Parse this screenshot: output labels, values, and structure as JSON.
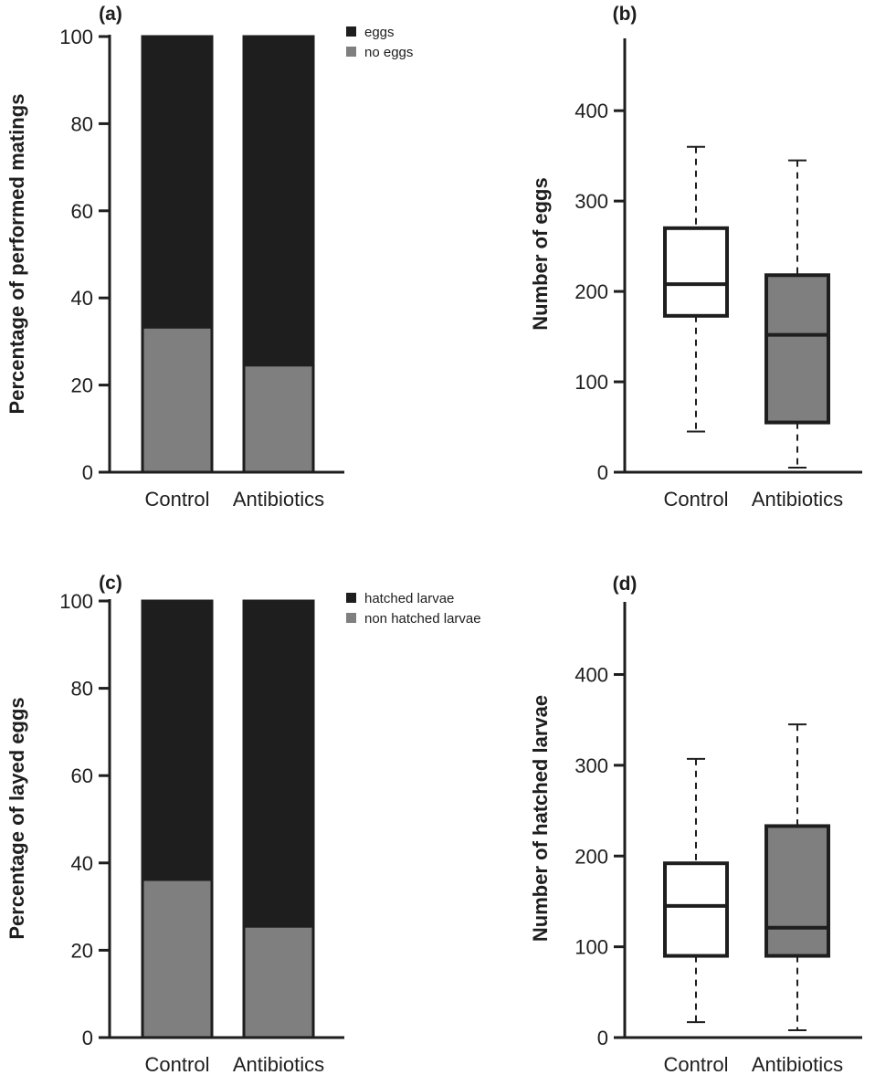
{
  "chart_data": [
    {
      "panel": "(a)",
      "type": "bar",
      "stacked": true,
      "ylabel": "Percentage of performed matings",
      "ylim": [
        0,
        100
      ],
      "yticks": [
        0,
        20,
        40,
        60,
        80,
        100
      ],
      "categories": [
        "Control",
        "Antibiotics"
      ],
      "series": [
        {
          "name": "no eggs",
          "color": "#7f7f7f",
          "values": [
            33.3,
            24.6
          ]
        },
        {
          "name": "eggs",
          "color": "#1e1e1e",
          "values": [
            66.7,
            75.4
          ]
        }
      ],
      "legend": "top-right"
    },
    {
      "panel": "(b)",
      "type": "box",
      "ylabel": "Number of eggs",
      "ylim": [
        0,
        480
      ],
      "yticks": [
        0,
        100,
        200,
        300,
        400
      ],
      "categories": [
        "Control",
        "Antibiotics"
      ],
      "boxes": [
        {
          "min": 45,
          "q1": 173,
          "median": 208,
          "q3": 270,
          "max": 360,
          "fill": "#ffffff"
        },
        {
          "min": 5,
          "q1": 55,
          "median": 152,
          "q3": 218,
          "max": 345,
          "fill": "#7f7f7f"
        }
      ]
    },
    {
      "panel": "(c)",
      "type": "bar",
      "stacked": true,
      "ylabel": "Percentage of layed eggs",
      "ylim": [
        0,
        100
      ],
      "yticks": [
        0,
        20,
        40,
        60,
        80,
        100
      ],
      "categories": [
        "Control",
        "Antibiotics"
      ],
      "series": [
        {
          "name": "non hatched larvae",
          "color": "#7f7f7f",
          "values": [
            36.2,
            25.5
          ]
        },
        {
          "name": "hatched larvae",
          "color": "#1e1e1e",
          "values": [
            63.8,
            74.5
          ]
        }
      ],
      "legend": "top-right"
    },
    {
      "panel": "(d)",
      "type": "box",
      "ylabel": "Number of hatched larvae",
      "ylim": [
        0,
        480
      ],
      "yticks": [
        0,
        100,
        200,
        300,
        400
      ],
      "categories": [
        "Control",
        "Antibiotics"
      ],
      "boxes": [
        {
          "min": 17,
          "q1": 90,
          "median": 145,
          "q3": 192,
          "max": 307,
          "fill": "#ffffff"
        },
        {
          "min": 8,
          "q1": 90,
          "median": 121,
          "q3": 233,
          "max": 345,
          "fill": "#7f7f7f"
        }
      ]
    }
  ]
}
